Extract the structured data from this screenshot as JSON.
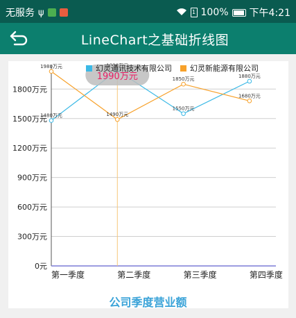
{
  "status_bar": {
    "carrier": "无服务",
    "battery_percent": "100%",
    "time": "下午4:21",
    "icons": [
      "usb-icon",
      "app-icon",
      "app-icon",
      "wifi-icon",
      "sim-icon",
      "battery-icon"
    ]
  },
  "toolbar": {
    "title": "LineChart之基础折线图",
    "back_icon": "back-arrow-icon"
  },
  "colors": {
    "status_bar": "#0a5b50",
    "toolbar": "#0c7f6e",
    "series_1": "#3bb9e6",
    "series_2": "#f7a12a",
    "highlight": "#e91e63",
    "chart_title": "#3aa3d8"
  },
  "chart_data": {
    "type": "line",
    "title": "公司季度营业额",
    "categories": [
      "第一季度",
      "第二季度",
      "第三季度",
      "第四季度"
    ],
    "x_positions": [
      1,
      2,
      3,
      4
    ],
    "series": [
      {
        "name": "幻灵通讯技术有限公司",
        "values": [
          1480,
          1990,
          1550,
          1880
        ],
        "labels": [
          "1480万元",
          "1990万元",
          "1550万元",
          "1880万元"
        ]
      },
      {
        "name": "幻灵新能源有限公司",
        "values": [
          1980,
          1490,
          1850,
          1680
        ],
        "labels": [
          "1980万元",
          "1490万元",
          "1850万元",
          "1680万元"
        ]
      }
    ],
    "y_ticks": [
      0,
      300,
      600,
      900,
      1200,
      1500,
      1800
    ],
    "y_tick_labels": [
      "0元",
      "300万元",
      "600万元",
      "900万元",
      "1200万元",
      "1500万元",
      "1800万元"
    ],
    "ylim": [
      0,
      2000
    ],
    "xlim": [
      1,
      4.4
    ],
    "grid": "horizontal",
    "legend_position": "top-right",
    "highlight": {
      "series_index": 0,
      "point_index": 1,
      "label": "1990万元"
    }
  }
}
